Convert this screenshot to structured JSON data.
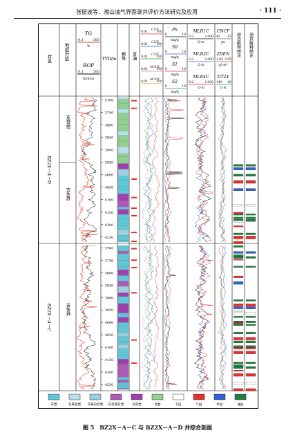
{
  "header": {
    "title": "张振波等．渤山油气界面录井评价方法研究及应用",
    "page_number": "· 111 ·"
  },
  "figure": {
    "columns": {
      "well_name": "井名",
      "strata": "地层分层",
      "tvd": "TVD/m",
      "lithology": "岩性",
      "oil_show": "含油",
      "result": "综合解释结论",
      "logging_result": "测井解释结论"
    },
    "curves": {
      "tg": {
        "name": "TG",
        "unit": "%",
        "min": "0.1",
        "max": "100"
      },
      "rop": {
        "name": "ROP",
        "unit": "m/min",
        "min": "0.1",
        "max": "100"
      },
      "c1": {
        "name": "C1/Σ",
        "unit": "",
        "min": "0.01",
        "max": "100"
      },
      "c2": {
        "name": "C2/Σ",
        "min": "0.01",
        "max": "100"
      },
      "c3": {
        "name": "C3/Σ",
        "min": "0.01",
        "max": "100"
      },
      "nc4": {
        "name": "nC4/Σ",
        "min": "0.01",
        "max": "100"
      },
      "nc5": {
        "name": "nC5/Σ",
        "min": "0.01",
        "max": "100"
      },
      "ph": {
        "name": "Ph",
        "unit": "mg/g",
        "min": "0",
        "max": "10"
      },
      "s0": {
        "name": "S0",
        "unit": "mg/g",
        "min": "0",
        "max": "10"
      },
      "s1": {
        "name": "S1",
        "unit": "mg/g",
        "min": "0",
        "max": "10"
      },
      "s2": {
        "name": "S2",
        "unit": "mg/g",
        "min": "0",
        "max": "10"
      },
      "mlr1c": {
        "name": "MLR1C",
        "unit": "Ω·m",
        "min": "0.2",
        "max": "2 000"
      },
      "mlr2c": {
        "name": "MLR2C",
        "unit": "Ω·m",
        "min": "0.2",
        "max": "2 000"
      },
      "mlr4c": {
        "name": "MLR4C",
        "unit": "Ω·m",
        "min": "0.2",
        "max": "2 000"
      },
      "cncf": {
        "name": "CNCF",
        "unit": "pu",
        "min": "45",
        "max": "-15"
      },
      "zden": {
        "name": "ZDEN",
        "unit": "g/cm³",
        "min": "1.95",
        "max": "2.95"
      },
      "dt24": {
        "name": "DT24",
        "unit": "Ω·m",
        "min": "140",
        "max": "40"
      }
    },
    "wells": [
      {
        "name": "BZ2X－A－D",
        "strata": [
          {
            "name": "东营组",
            "top": 3690,
            "base": 3950
          },
          {
            "name": "古生界",
            "top": 3950,
            "base": 4270
          }
        ],
        "depth_top": 3690,
        "depth_base": 4270,
        "depth_ticks": [
          3700,
          3750,
          3800,
          3850,
          3900,
          3950,
          4000,
          4050,
          4100,
          4150,
          4200,
          4250
        ]
      },
      {
        "name": "BZ2X－A－C",
        "strata": [
          {
            "name": "古生界",
            "top": 3690,
            "base": 4270
          }
        ],
        "depth_top": 3690,
        "depth_base": 4270,
        "depth_ticks": [
          3700,
          3750,
          3800,
          3850,
          3900,
          3950,
          4000,
          4050,
          4100,
          4150,
          4200,
          4250
        ]
      }
    ],
    "legend": [
      {
        "label": "灰岩",
        "color": "#5fc8d8"
      },
      {
        "label": "灰质泥岩",
        "color": "#b8e0e8"
      },
      {
        "label": "灰质白云岩",
        "color": "#9ad0e0"
      },
      {
        "label": "白云质灰岩",
        "color": "#b05ab8"
      },
      {
        "label": "白云岩",
        "color": "#a040b0"
      },
      {
        "label": "泥岩",
        "color": "#90d090"
      },
      {
        "label": "干层",
        "color": "#ffffff"
      },
      {
        "label": "气层",
        "color": "#e03030"
      },
      {
        "label": "水层",
        "color": "#3060d0"
      },
      {
        "label": "油层",
        "color": "#208040"
      }
    ]
  },
  "caption": "图 5　BZ2X－A－C 与 BZ2X－A－D 井综合剖面"
}
